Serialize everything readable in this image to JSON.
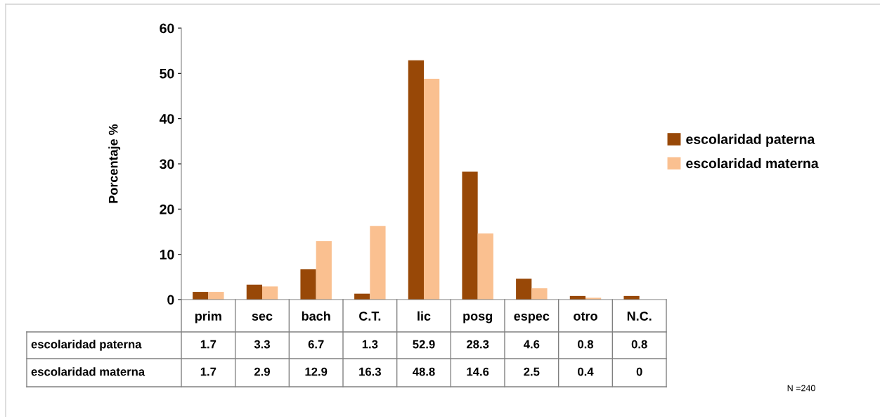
{
  "chart_data": {
    "type": "bar",
    "ylabel": "Porcentaje %",
    "categories": [
      "prim",
      "sec",
      "bach",
      "C.T.",
      "lic",
      "posg",
      "espec",
      "otro",
      "N.C."
    ],
    "series": [
      {
        "name": "escolaridad paterna",
        "color": "#984807",
        "values": [
          1.7,
          3.3,
          6.7,
          1.3,
          52.9,
          28.3,
          4.6,
          0.8,
          0.8
        ]
      },
      {
        "name": "escolaridad materna",
        "color": "#fac090",
        "values": [
          1.7,
          2.9,
          12.9,
          16.3,
          48.8,
          14.6,
          2.5,
          0.4,
          0
        ]
      }
    ],
    "ylim": [
      0,
      60
    ],
    "yticks": [
      0,
      10,
      20,
      30,
      40,
      50,
      60
    ],
    "grid": false,
    "legend": "right",
    "data_labels": true,
    "annotations": [
      "N =240"
    ]
  }
}
